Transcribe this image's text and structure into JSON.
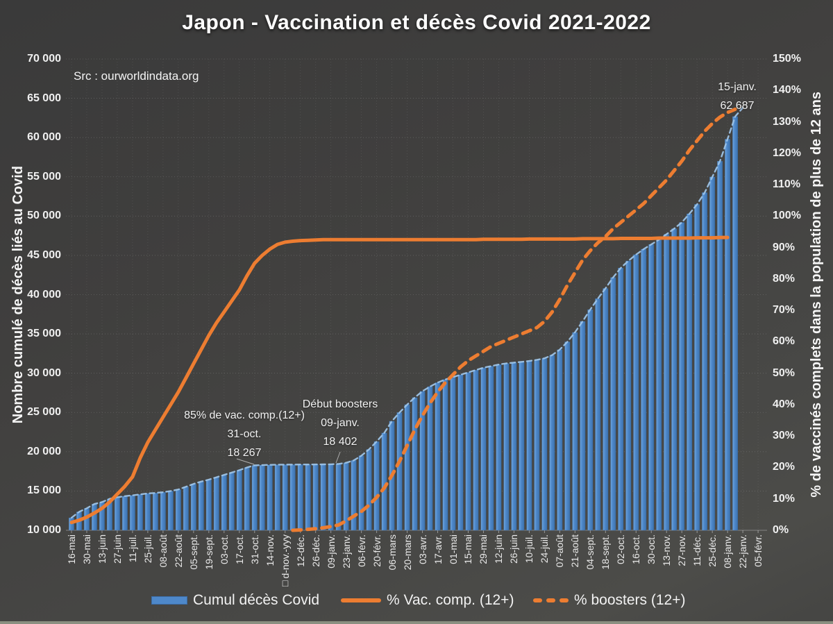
{
  "title": "Japon - Vaccination et décès Covid 2021-2022",
  "source": "Src : ourworldindata.org",
  "colors": {
    "bar_blue": "#4E88CA",
    "deaths_curve_blue": "#9DC3E6",
    "line_orange": "#ED7D31",
    "text": "#F2F2F2",
    "background": "#424241"
  },
  "left_axis": {
    "title": "Nombre cumulé de décès liés au Covid",
    "min": 10000,
    "max": 70000,
    "step": 5000,
    "tick_labels": [
      "70 000",
      "65 000",
      "60 000",
      "55 000",
      "50 000",
      "45 000",
      "40 000",
      "35 000",
      "30 000",
      "25 000",
      "20 000",
      "15 000",
      "10 000"
    ]
  },
  "right_axis": {
    "title": "% de vaccinés complets dans la population de plus de 12 ans",
    "min": 0,
    "max": 150,
    "step": 10,
    "tick_labels": [
      "150%",
      "140%",
      "130%",
      "120%",
      "110%",
      "100%",
      "90%",
      "80%",
      "70%",
      "60%",
      "50%",
      "40%",
      "30%",
      "20%",
      "10%",
      "0%"
    ]
  },
  "legend": {
    "items": [
      {
        "label": "Cumul décès Covid",
        "swatch": "bar"
      },
      {
        "label": "% Vac. comp. (12+)",
        "swatch": "solid-line"
      },
      {
        "label": "% boosters (12+)",
        "swatch": "dashed-line"
      }
    ]
  },
  "annotations": [
    {
      "lines": [
        "85% de vac. comp.(12+)",
        "31-oct.",
        "18 267"
      ]
    },
    {
      "lines": [
        "Début boosters",
        "09-janv.",
        "18 402"
      ]
    },
    {
      "lines": [
        "15-janv.",
        "62 687"
      ]
    }
  ],
  "chart_data": {
    "type": "bar",
    "title": "Japon - Vaccination et décès Covid 2021-2022",
    "x_tick_labels": [
      "16-mai",
      "30-mai",
      "13-juin",
      "27-juin",
      "11-juil.",
      "25-juil.",
      "08-août",
      "22-août",
      "05-sept.",
      "19-sept.",
      "03-oct.",
      "17-oct.",
      "31-oct.",
      "14-nov.",
      "□d-nov.-yyy",
      "12-déc.",
      "26-déc.",
      "09-janv.",
      "23-janv.",
      "06-févr.",
      "20-févr.",
      "06-mars",
      "20-mars",
      "03-avr.",
      "17-avr.",
      "01-mai",
      "15-mai",
      "29-mai",
      "12-juin",
      "26-juin",
      "10-juil.",
      "24-juil.",
      "07-août",
      "21-août",
      "04-sept.",
      "18-sept.",
      "02-oct.",
      "16-oct.",
      "30-oct.",
      "13-nov.",
      "27-nov.",
      "11-déc.",
      "25-déc.",
      "08-janv.",
      "22-janv.",
      "05-févr."
    ],
    "points_per_tick": 2,
    "series": [
      {
        "name": "Cumul décès Covid",
        "type": "bar",
        "axis": "left",
        "values": [
          11600,
          12350,
          12800,
          13350,
          13600,
          14000,
          14200,
          14350,
          14450,
          14570,
          14700,
          14750,
          14850,
          15000,
          15200,
          15550,
          15900,
          16200,
          16450,
          16750,
          17050,
          17350,
          17650,
          18000,
          18267,
          18300,
          18330,
          18350,
          18360,
          18370,
          18375,
          18380,
          18390,
          18395,
          18402,
          18450,
          18600,
          18900,
          19500,
          20300,
          21300,
          22400,
          23900,
          25000,
          26000,
          26900,
          27700,
          28300,
          28800,
          29200,
          29500,
          29800,
          30100,
          30400,
          30700,
          30900,
          31100,
          31250,
          31350,
          31450,
          31550,
          31700,
          31900,
          32300,
          33000,
          34000,
          35200,
          36600,
          38100,
          39500,
          40800,
          42200,
          43400,
          44300,
          45100,
          45800,
          46400,
          47000,
          47700,
          48400,
          49200,
          50300,
          51500,
          53000,
          55000,
          57000,
          59800,
          62687
        ]
      },
      {
        "name": "Cumul décès Covid (courbe)",
        "type": "line",
        "style": "dashed",
        "axis": "left",
        "color": "#9DC3E6",
        "values": [
          11600,
          12350,
          12800,
          13350,
          13600,
          14000,
          14200,
          14350,
          14450,
          14570,
          14700,
          14750,
          14850,
          15000,
          15200,
          15550,
          15900,
          16200,
          16450,
          16750,
          17050,
          17350,
          17650,
          18000,
          18267,
          18300,
          18330,
          18350,
          18360,
          18370,
          18375,
          18380,
          18390,
          18395,
          18402,
          18450,
          18600,
          18900,
          19500,
          20300,
          21300,
          22400,
          23900,
          25000,
          26000,
          26900,
          27700,
          28300,
          28800,
          29200,
          29500,
          29800,
          30100,
          30400,
          30700,
          30900,
          31100,
          31250,
          31350,
          31450,
          31550,
          31700,
          31900,
          32300,
          33000,
          34000,
          35200,
          36600,
          38100,
          39500,
          40800,
          42200,
          43400,
          44300,
          45100,
          45800,
          46400,
          47000,
          47700,
          48400,
          49200,
          50300,
          51500,
          53000,
          55000,
          57000,
          59800,
          62687,
          63800
        ]
      },
      {
        "name": "% Vac. comp. (12+)",
        "type": "line",
        "style": "solid",
        "axis": "right",
        "color": "#ED7D31",
        "values": [
          2.5,
          3.2,
          4.2,
          5.5,
          7,
          9,
          11.5,
          14,
          17,
          23,
          28,
          32,
          36,
          40,
          44,
          48.5,
          53,
          57.5,
          62,
          66,
          69.5,
          73,
          76.5,
          81,
          85,
          87.5,
          89.5,
          91,
          91.7,
          92,
          92.2,
          92.3,
          92.4,
          92.5,
          92.5,
          92.5,
          92.5,
          92.5,
          92.5,
          92.5,
          92.5,
          92.5,
          92.5,
          92.5,
          92.5,
          92.5,
          92.5,
          92.5,
          92.5,
          92.5,
          92.5,
          92.5,
          92.5,
          92.5,
          92.6,
          92.6,
          92.6,
          92.6,
          92.6,
          92.6,
          92.7,
          92.7,
          92.7,
          92.7,
          92.7,
          92.7,
          92.7,
          92.8,
          92.8,
          92.8,
          92.8,
          92.8,
          92.9,
          92.9,
          92.9,
          92.9,
          92.9,
          93,
          93,
          93,
          93,
          93,
          93.1,
          93.1,
          93.1,
          93.2,
          93.2,
          null
        ]
      },
      {
        "name": "% boosters (12+)",
        "type": "line",
        "style": "dashed",
        "axis": "right",
        "color": "#ED7D31",
        "values": [
          null,
          null,
          null,
          null,
          null,
          null,
          null,
          null,
          null,
          null,
          null,
          null,
          null,
          null,
          null,
          null,
          null,
          null,
          null,
          null,
          null,
          null,
          null,
          null,
          null,
          null,
          null,
          null,
          null,
          0,
          0.1,
          0.3,
          0.5,
          0.8,
          1.2,
          1.7,
          3,
          4.5,
          6,
          8,
          10.5,
          13.5,
          17.5,
          22,
          27,
          32,
          36.5,
          40.5,
          44,
          47,
          49.5,
          52,
          54,
          55.5,
          57,
          58.5,
          59.5,
          60.5,
          61.5,
          62.5,
          63.5,
          64.5,
          66.5,
          69.5,
          73.5,
          78,
          82,
          86,
          89,
          91.5,
          93.5,
          96,
          98,
          100,
          102,
          104,
          106.5,
          109,
          111.5,
          114.5,
          117.5,
          121,
          124,
          127,
          129.5,
          131.5,
          133,
          134
        ]
      }
    ]
  }
}
